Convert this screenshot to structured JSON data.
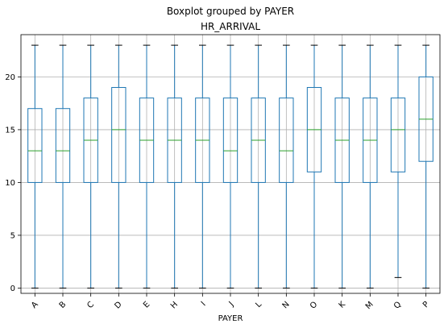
{
  "chart_data": {
    "type": "boxplot",
    "suptitle": "Boxplot grouped by PAYER",
    "title": "HR_ARRIVAL",
    "xlabel": "PAYER",
    "ylabel": "",
    "ylim": [
      -0.5,
      24
    ],
    "yticks": [
      0,
      5,
      10,
      15,
      20
    ],
    "grid": true,
    "colors": {
      "box": "#1f77b4",
      "median": "#2ca02c",
      "whisker": "#1f77b4",
      "cap": "#000000",
      "grid": "#b0b0b0"
    },
    "categories": [
      "A",
      "B",
      "C",
      "D",
      "E",
      "H",
      "I",
      "J",
      "L",
      "N",
      "O",
      "K",
      "M",
      "Q",
      "P"
    ],
    "boxes": [
      {
        "label": "A",
        "whislo": 0,
        "q1": 10,
        "med": 13,
        "q3": 17,
        "whishi": 23
      },
      {
        "label": "B",
        "whislo": 0,
        "q1": 10,
        "med": 13,
        "q3": 17,
        "whishi": 23
      },
      {
        "label": "C",
        "whislo": 0,
        "q1": 10,
        "med": 14,
        "q3": 18,
        "whishi": 23
      },
      {
        "label": "D",
        "whislo": 0,
        "q1": 10,
        "med": 15,
        "q3": 19,
        "whishi": 23
      },
      {
        "label": "E",
        "whislo": 0,
        "q1": 10,
        "med": 14,
        "q3": 18,
        "whishi": 23
      },
      {
        "label": "H",
        "whislo": 0,
        "q1": 10,
        "med": 14,
        "q3": 18,
        "whishi": 23
      },
      {
        "label": "I",
        "whislo": 0,
        "q1": 10,
        "med": 14,
        "q3": 18,
        "whishi": 23
      },
      {
        "label": "J",
        "whislo": 0,
        "q1": 10,
        "med": 13,
        "q3": 18,
        "whishi": 23
      },
      {
        "label": "L",
        "whislo": 0,
        "q1": 10,
        "med": 14,
        "q3": 18,
        "whishi": 23
      },
      {
        "label": "N",
        "whislo": 0,
        "q1": 10,
        "med": 13,
        "q3": 18,
        "whishi": 23
      },
      {
        "label": "O",
        "whislo": 0,
        "q1": 11,
        "med": 15,
        "q3": 19,
        "whishi": 23
      },
      {
        "label": "K",
        "whislo": 0,
        "q1": 10,
        "med": 14,
        "q3": 18,
        "whishi": 23
      },
      {
        "label": "M",
        "whislo": 0,
        "q1": 10,
        "med": 14,
        "q3": 18,
        "whishi": 23
      },
      {
        "label": "Q",
        "whislo": 1,
        "q1": 11,
        "med": 15,
        "q3": 18,
        "whishi": 23
      },
      {
        "label": "P",
        "whislo": 0,
        "q1": 12,
        "med": 16,
        "q3": 20,
        "whishi": 23
      }
    ]
  }
}
